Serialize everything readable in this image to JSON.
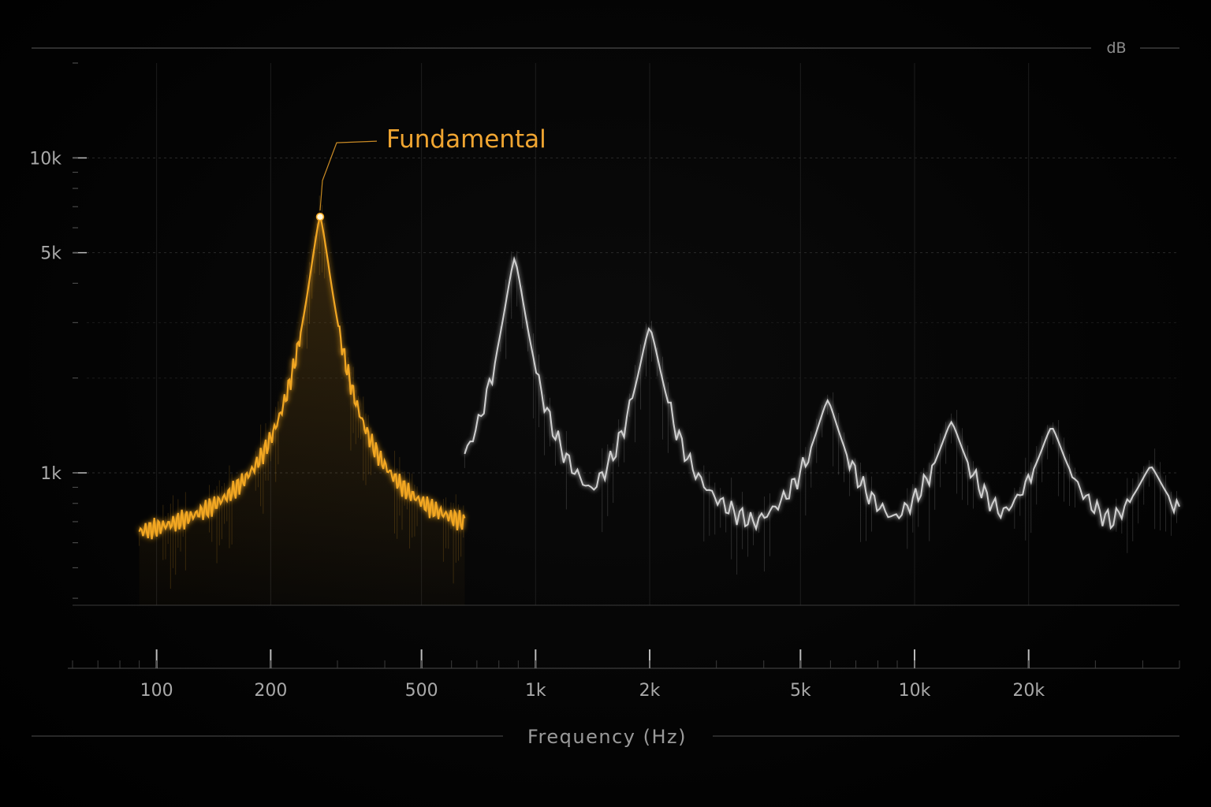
{
  "chart_data": {
    "type": "line",
    "title": "",
    "xlabel": "Frequency (Hz)",
    "ylabel": "dB",
    "x_scale": "log",
    "y_scale": "log",
    "xlim": [
      60,
      50000
    ],
    "ylim": [
      380,
      20000
    ],
    "x_ticks": [
      {
        "value": 100,
        "label": "100"
      },
      {
        "value": 200,
        "label": "200"
      },
      {
        "value": 500,
        "label": "500"
      },
      {
        "value": 1000,
        "label": "1k"
      },
      {
        "value": 2000,
        "label": "2k"
      },
      {
        "value": 5000,
        "label": "5k"
      },
      {
        "value": 10000,
        "label": "10k"
      },
      {
        "value": 20000,
        "label": "20k"
      }
    ],
    "y_ticks": [
      {
        "value": 1000,
        "label": "1k"
      },
      {
        "value": 5000,
        "label": "5k"
      },
      {
        "value": 10000,
        "label": "10k"
      }
    ],
    "grid": true,
    "baseline": 520,
    "series": [
      {
        "color": "#f2a724",
        "peaks": [
          {
            "x": 270,
            "y": 6500
          }
        ]
      },
      {
        "color": "#e6e6e6",
        "peaks": [
          {
            "x": 880,
            "y": 4800
          },
          {
            "x": 2000,
            "y": 2900
          },
          {
            "x": 5900,
            "y": 1700
          },
          {
            "x": 12500,
            "y": 1450
          },
          {
            "x": 23000,
            "y": 1400
          },
          {
            "x": 42000,
            "y": 1050
          }
        ]
      }
    ],
    "annotations": [
      {
        "text": "Fundamental",
        "x": 270,
        "y": 6500,
        "color": "#f0a531"
      }
    ]
  }
}
